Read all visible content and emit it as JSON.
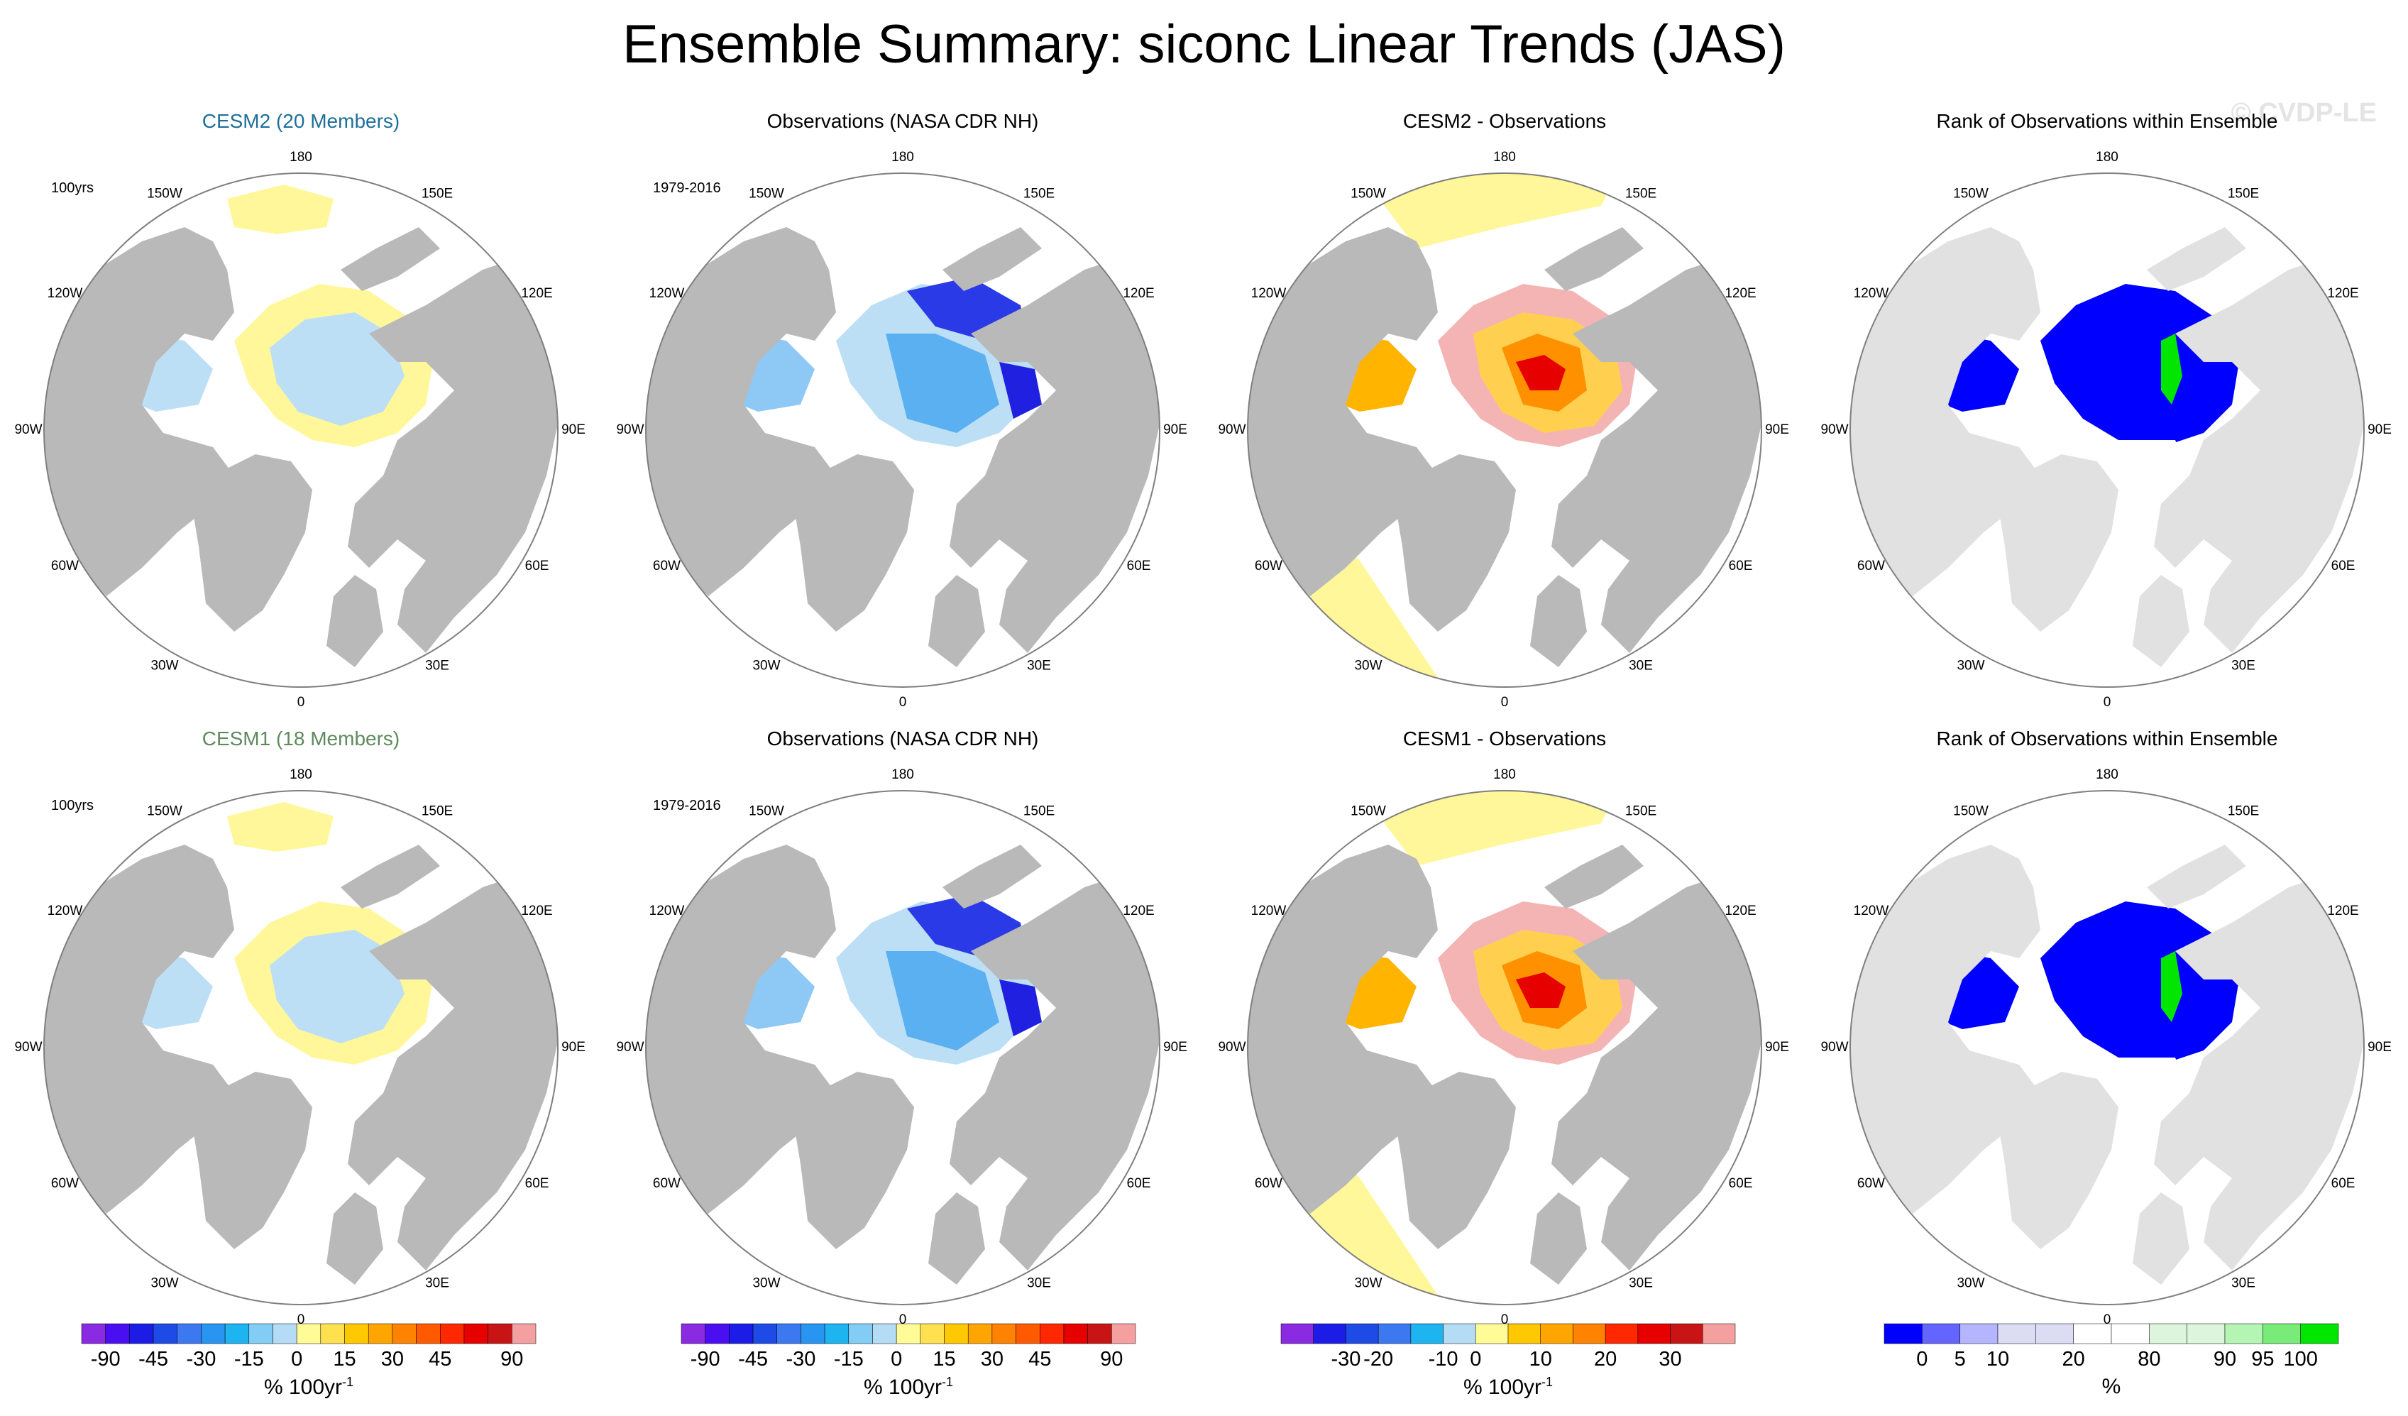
{
  "title": "Ensemble Summary: siconc Linear Trends (JAS)",
  "watermark": "© CVDP-LE",
  "colors": {
    "land": "#b9b9b9",
    "ocean": "#ffffff",
    "rank_land": "#e1e1e1",
    "map_border": "#7f7f7f"
  },
  "longitude_labels": [
    "180",
    "150E",
    "120E",
    "90E",
    "60E",
    "30E",
    "0",
    "30W",
    "60W",
    "90W",
    "120W",
    "150W"
  ],
  "rows": [
    {
      "panels": [
        {
          "title": "CESM2 (20 Members)",
          "title_color": "#1f6f9a",
          "label": "100yrs",
          "map_type": "ensemble",
          "pattern": "cesm2_ens"
        },
        {
          "title": "Observations (NASA CDR NH)",
          "title_color": "#000000",
          "label": "1979-2016",
          "map_type": "observations",
          "pattern": "obs"
        },
        {
          "title": "CESM2 - Observations",
          "title_color": "#000000",
          "label": "",
          "map_type": "difference",
          "pattern": "cesm2_diff"
        },
        {
          "title": "Rank of Observations within Ensemble",
          "title_color": "#000000",
          "label": "",
          "map_type": "rank",
          "pattern": "cesm2_rank"
        }
      ]
    },
    {
      "panels": [
        {
          "title": "CESM1 (18 Members)",
          "title_color": "#5e8a5e",
          "label": "100yrs",
          "map_type": "ensemble",
          "pattern": "cesm1_ens"
        },
        {
          "title": "Observations (NASA CDR NH)",
          "title_color": "#000000",
          "label": "1979-2016",
          "map_type": "observations",
          "pattern": "obs"
        },
        {
          "title": "CESM1 - Observations",
          "title_color": "#000000",
          "label": "",
          "map_type": "difference",
          "pattern": "cesm1_diff"
        },
        {
          "title": "Rank of Observations within Ensemble",
          "title_color": "#000000",
          "label": "",
          "map_type": "rank",
          "pattern": "cesm1_rank"
        }
      ]
    }
  ],
  "colorbars": [
    {
      "units": "% 100yr",
      "units_sup": "-1",
      "colors": [
        "#8a2be2",
        "#4b0ef0",
        "#1c1ce6",
        "#1e4be6",
        "#3c78f0",
        "#2896f0",
        "#1eb4f0",
        "#82cdf5",
        "#b4dcf5",
        "#fffb96",
        "#ffe150",
        "#ffc800",
        "#ffa500",
        "#ff8200",
        "#ff5a00",
        "#ff2800",
        "#e60000",
        "#c81414",
        "#f5a0a0"
      ],
      "ticks": [
        {
          "label": "-90",
          "at": 1
        },
        {
          "label": "-45",
          "at": 3
        },
        {
          "label": "-30",
          "at": 5
        },
        {
          "label": "-15",
          "at": 7
        },
        {
          "label": "0",
          "at": 9
        },
        {
          "label": "15",
          "at": 11
        },
        {
          "label": "30",
          "at": 13
        },
        {
          "label": "45",
          "at": 15
        },
        {
          "label": "90",
          "at": 18
        }
      ]
    },
    {
      "units": "% 100yr",
      "units_sup": "-1",
      "colors": [
        "#8a2be2",
        "#4b0ef0",
        "#1c1ce6",
        "#1e4be6",
        "#3c78f0",
        "#2896f0",
        "#1eb4f0",
        "#82cdf5",
        "#b4dcf5",
        "#fffb96",
        "#ffe150",
        "#ffc800",
        "#ffa500",
        "#ff8200",
        "#ff5a00",
        "#ff2800",
        "#e60000",
        "#c81414",
        "#f5a0a0"
      ],
      "ticks": [
        {
          "label": "-90",
          "at": 1
        },
        {
          "label": "-45",
          "at": 3
        },
        {
          "label": "-30",
          "at": 5
        },
        {
          "label": "-15",
          "at": 7
        },
        {
          "label": "0",
          "at": 9
        },
        {
          "label": "15",
          "at": 11
        },
        {
          "label": "30",
          "at": 13
        },
        {
          "label": "45",
          "at": 15
        },
        {
          "label": "90",
          "at": 18
        }
      ]
    },
    {
      "units": "% 100yr",
      "units_sup": "-1",
      "colors": [
        "#8a2be2",
        "#1c1ce6",
        "#1e4be6",
        "#3c78f0",
        "#1eb4f0",
        "#b4dcf5",
        "#fffb96",
        "#ffc800",
        "#ffa500",
        "#ff8200",
        "#ff2800",
        "#e60000",
        "#c81414",
        "#f5a0a0"
      ],
      "ticks": [
        {
          "label": "-30",
          "at": 2
        },
        {
          "label": "-20",
          "at": 3
        },
        {
          "label": "-10",
          "at": 5
        },
        {
          "label": "0",
          "at": 6
        },
        {
          "label": "10",
          "at": 8
        },
        {
          "label": "20",
          "at": 10
        },
        {
          "label": "30",
          "at": 12
        }
      ]
    },
    {
      "units": "%",
      "units_sup": "",
      "colors": [
        "#0000ff",
        "#6464ff",
        "#b4b4ff",
        "#dcdcf5",
        "#dcdcf5",
        "#ffffff",
        "#ffffff",
        "#dcf5dc",
        "#dcf5dc",
        "#b4f5b4",
        "#78eb78",
        "#00e600"
      ],
      "ticks": [
        {
          "label": "0",
          "at": 1
        },
        {
          "label": "5",
          "at": 2
        },
        {
          "label": "10",
          "at": 3
        },
        {
          "label": "20",
          "at": 5
        },
        {
          "label": "80",
          "at": 7
        },
        {
          "label": "90",
          "at": 9
        },
        {
          "label": "95",
          "at": 10
        },
        {
          "label": "100",
          "at": 11
        }
      ]
    }
  ]
}
